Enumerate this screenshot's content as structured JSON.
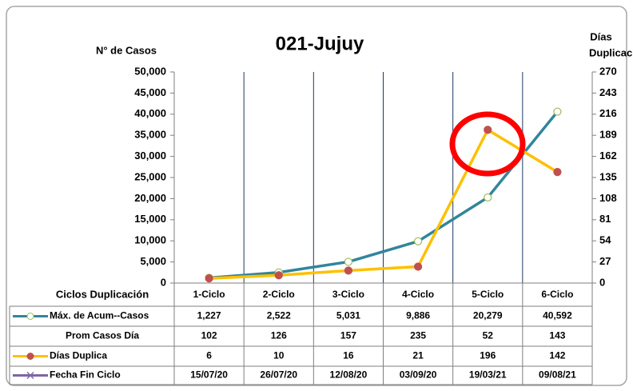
{
  "chart_data": {
    "type": "line",
    "title": "021-Jujuy",
    "y_label": "N° de Casos",
    "y2_label": [
      "Días",
      "Duplicación"
    ],
    "table_header": "Ciclos Duplicación",
    "categories": [
      "1-Ciclo",
      "2-Ciclo",
      "3-Ciclo",
      "4-Ciclo",
      "5-Ciclo",
      "6-Ciclo"
    ],
    "ylim": [
      0,
      50000
    ],
    "yticks": [
      0,
      {
        "value": 5000,
        "label": "5,000"
      },
      {
        "value": 10000,
        "label": "10,000"
      },
      {
        "value": 15000,
        "label": "15,000"
      },
      {
        "value": 20000,
        "label": "20,000"
      },
      {
        "value": 25000,
        "label": "25,000"
      },
      {
        "value": 30000,
        "label": "30,000"
      },
      {
        "value": 35000,
        "label": "35,000"
      },
      {
        "value": 40000,
        "label": "40,000"
      },
      {
        "value": 45000,
        "label": "45,000"
      },
      {
        "value": 50000,
        "label": "50,000"
      }
    ],
    "y2lim": [
      0,
      270
    ],
    "y2ticks": [
      0,
      27,
      54,
      81,
      108,
      135,
      162,
      189,
      216,
      243,
      270
    ],
    "grid": false,
    "series": [
      {
        "name": "Máx. de Acum--Casos",
        "color": "#31859c",
        "marker_color": "#9bbb59",
        "values": [
          1227,
          2522,
          5031,
          9886,
          20279,
          40592
        ],
        "value_labels": [
          "1,227",
          "2,522",
          "5,031",
          "9,886",
          "20,279",
          "40,592"
        ]
      },
      {
        "name": "Días Duplica",
        "color": "#ffc000",
        "marker_color": "#c0504d",
        "axis": "y2",
        "values": [
          6,
          10,
          16,
          21,
          196,
          142
        ]
      }
    ],
    "extra_rows": [
      {
        "name": "Prom Casos Día",
        "values": [
          102,
          126,
          157,
          235,
          52,
          143
        ]
      },
      {
        "name": "Fecha Fin Ciclo",
        "color": "#8064a2",
        "values": [
          "15/07/20",
          "26/07/20",
          "12/08/20",
          "03/09/20",
          "19/03/21",
          "09/08/21"
        ]
      }
    ]
  }
}
